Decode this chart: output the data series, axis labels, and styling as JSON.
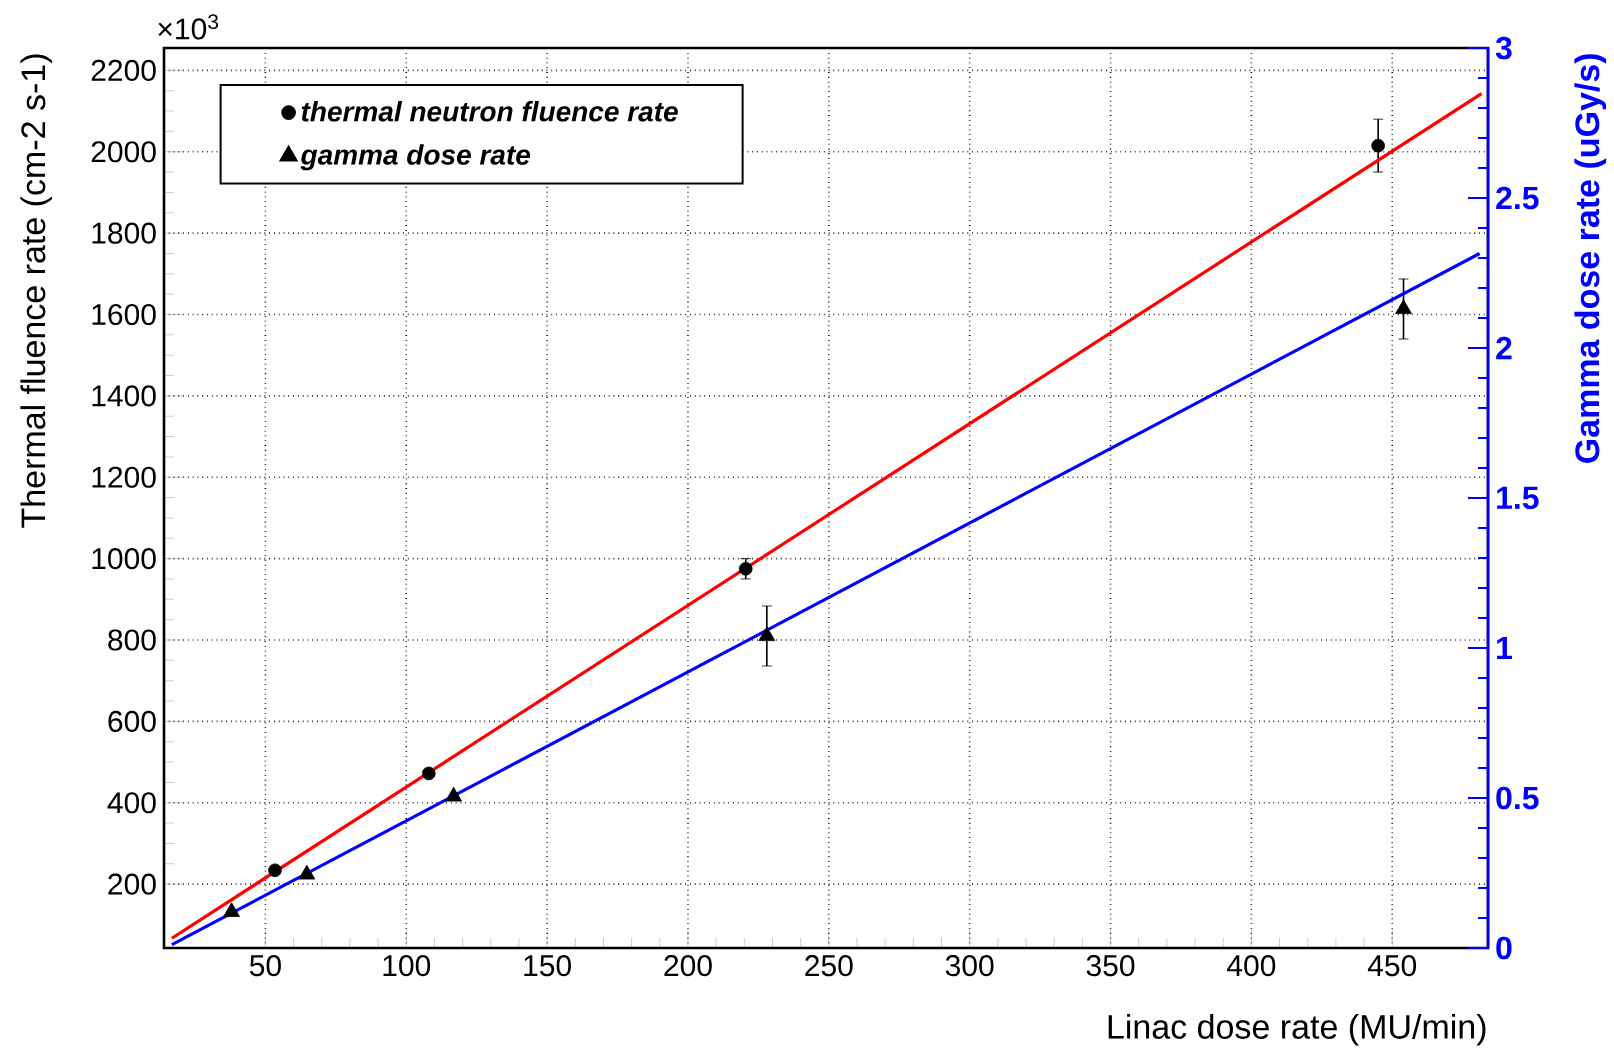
{
  "chart_data": {
    "type": "scatter",
    "xlabel": "Linac dose rate (MU/min)",
    "ylabel": "Thermal fluence rate (cm-2 s-1)",
    "y2label": "Gamma dose rate (uGy/s)",
    "annotations": [
      "×10$^{3}$"
    ],
    "xlim": [
      14,
      484
    ],
    "xticks": [
      50,
      100,
      150,
      200,
      250,
      300,
      350,
      400,
      450
    ],
    "ylim": [
      43,
      2255
    ],
    "yticks": [
      200,
      400,
      600,
      800,
      1000,
      1200,
      1400,
      1600,
      1800,
      2000,
      2200
    ],
    "y2lim": [
      0,
      3
    ],
    "y2ticks": [
      0,
      0.5,
      1,
      1.5,
      2,
      2.5,
      3
    ],
    "grid": true,
    "legend": "top left",
    "series": [
      {
        "name": "thermal neutron fluence rate",
        "color": "#000000",
        "marker": "circle",
        "axis": "y",
        "x": [
          53.4,
          108,
          220.5,
          445
        ],
        "values": [
          234,
          472,
          975,
          2015
        ],
        "errors": [
          null,
          null,
          25,
          65
        ]
      },
      {
        "name": "gamma dose rate",
        "color": "#000000",
        "marker": "triangle",
        "axis": "y2",
        "x": [
          38,
          64.7,
          116.8,
          228,
          454
        ],
        "values": [
          0.12,
          0.245,
          0.505,
          1.04,
          2.13
        ],
        "errors": [
          null,
          null,
          null,
          0.1,
          0.1
        ]
      },
      {
        "type": "line",
        "color": "#ff0000",
        "marker": "none",
        "line_style": "solid",
        "axis": "y",
        "x": [
          16.8,
          481.7
        ],
        "values": [
          67,
          2143
        ]
      },
      {
        "type": "line",
        "color": "#0000ff",
        "marker": "none",
        "line_style": "solid",
        "axis": "y2",
        "x": [
          16.8,
          481
        ],
        "values": [
          0.011,
          2.315
        ]
      }
    ]
  }
}
